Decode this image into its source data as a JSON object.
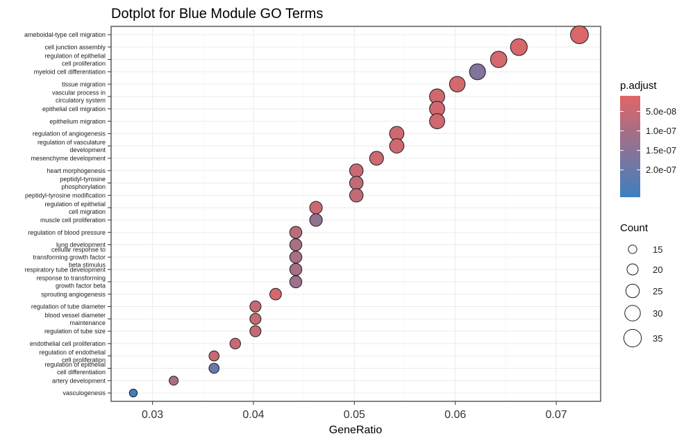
{
  "chart_data": {
    "type": "scatter",
    "title": "Dotplot for Blue Module GO Terms",
    "xlabel": "GeneRatio",
    "ylabel": "",
    "xlim": [
      0.0259,
      0.0744
    ],
    "xticks": [
      0.03,
      0.04,
      0.05,
      0.06,
      0.07
    ],
    "xtick_labels": [
      "0.03",
      "0.04",
      "0.05",
      "0.06",
      "0.07"
    ],
    "grid": true,
    "categories": [
      "ameboidal-type cell migration",
      "cell junction assembly",
      "regulation of epithelial\ncell proliferation",
      "myeloid cell differentiation",
      "tissue migration",
      "vascular process in\ncirculatory system",
      "epithelial cell migration",
      "epithelium migration",
      "regulation of angiogenesis",
      "regulation of vasculature\ndevelopment",
      "mesenchyme development",
      "heart morphogenesis",
      "peptidyl-tyrosine\nphosphorylation",
      "peptidyl-tyrosine modification",
      "regulation of epithelial\ncell migration",
      "muscle cell proliferation",
      "regulation of blood pressure",
      "lung development",
      "cellular response to\ntransforming growth factor\nbeta stimulus",
      "respiratory tube development",
      "response to transforming\ngrowth factor beta",
      "sprouting angiogenesis",
      "regulation of tube diameter",
      "blood vessel diameter\nmaintenance",
      "regulation of tube size",
      "endothelial cell proliferation",
      "regulation of endothelial\ncell proliferation",
      "regulation of epithelial\ncell differentiation",
      "artery development",
      "vasculogenesis"
    ],
    "points": [
      {
        "term": "ameboidal-type cell migration",
        "gene_ratio": 0.0723,
        "count": 36,
        "p_adjust": 2e-08
      },
      {
        "term": "cell junction assembly",
        "gene_ratio": 0.0663,
        "count": 33,
        "p_adjust": 2.5e-08
      },
      {
        "term": "regulation of epithelial cell proliferation",
        "gene_ratio": 0.0643,
        "count": 32,
        "p_adjust": 3e-08
      },
      {
        "term": "myeloid cell differentiation",
        "gene_ratio": 0.0622,
        "count": 31,
        "p_adjust": 1.6e-07
      },
      {
        "term": "tissue migration",
        "gene_ratio": 0.0602,
        "count": 30,
        "p_adjust": 3e-08
      },
      {
        "term": "vascular process in circulatory system",
        "gene_ratio": 0.0582,
        "count": 29,
        "p_adjust": 3.5e-08
      },
      {
        "term": "epithelial cell migration",
        "gene_ratio": 0.0582,
        "count": 29,
        "p_adjust": 3.5e-08
      },
      {
        "term": "epithelium migration",
        "gene_ratio": 0.0582,
        "count": 29,
        "p_adjust": 3.5e-08
      },
      {
        "term": "regulation of angiogenesis",
        "gene_ratio": 0.0542,
        "count": 27,
        "p_adjust": 4e-08
      },
      {
        "term": "regulation of vasculature development",
        "gene_ratio": 0.0542,
        "count": 27,
        "p_adjust": 4e-08
      },
      {
        "term": "mesenchyme development",
        "gene_ratio": 0.0522,
        "count": 26,
        "p_adjust": 4e-08
      },
      {
        "term": "heart morphogenesis",
        "gene_ratio": 0.0502,
        "count": 25,
        "p_adjust": 5e-08
      },
      {
        "term": "peptidyl-tyrosine phosphorylation",
        "gene_ratio": 0.0502,
        "count": 25,
        "p_adjust": 6e-08
      },
      {
        "term": "peptidyl-tyrosine modification",
        "gene_ratio": 0.0502,
        "count": 25,
        "p_adjust": 6e-08
      },
      {
        "term": "regulation of epithelial cell migration",
        "gene_ratio": 0.0462,
        "count": 23,
        "p_adjust": 4.5e-08
      },
      {
        "term": "muscle cell proliferation",
        "gene_ratio": 0.0462,
        "count": 23,
        "p_adjust": 1.35e-07
      },
      {
        "term": "regulation of blood pressure",
        "gene_ratio": 0.0442,
        "count": 22,
        "p_adjust": 7e-08
      },
      {
        "term": "lung development",
        "gene_ratio": 0.0442,
        "count": 22,
        "p_adjust": 1e-07
      },
      {
        "term": "cellular response to transforming growth factor beta stimulus",
        "gene_ratio": 0.0442,
        "count": 22,
        "p_adjust": 1e-07
      },
      {
        "term": "respiratory tube development",
        "gene_ratio": 0.0442,
        "count": 22,
        "p_adjust": 1.05e-07
      },
      {
        "term": "response to transforming growth factor beta",
        "gene_ratio": 0.0442,
        "count": 22,
        "p_adjust": 1.2e-07
      },
      {
        "term": "sprouting angiogenesis",
        "gene_ratio": 0.0422,
        "count": 21,
        "p_adjust": 3e-08
      },
      {
        "term": "regulation of tube diameter",
        "gene_ratio": 0.0402,
        "count": 20,
        "p_adjust": 6e-08
      },
      {
        "term": "blood vessel diameter maintenance",
        "gene_ratio": 0.0402,
        "count": 20,
        "p_adjust": 6e-08
      },
      {
        "term": "regulation of tube size",
        "gene_ratio": 0.0402,
        "count": 20,
        "p_adjust": 6e-08
      },
      {
        "term": "endothelial cell proliferation",
        "gene_ratio": 0.0382,
        "count": 19,
        "p_adjust": 5e-08
      },
      {
        "term": "regulation of endothelial cell proliferation",
        "gene_ratio": 0.0361,
        "count": 18,
        "p_adjust": 5.5e-08
      },
      {
        "term": "regulation of epithelial cell differentiation",
        "gene_ratio": 0.0361,
        "count": 18,
        "p_adjust": 2e-07
      },
      {
        "term": "artery development",
        "gene_ratio": 0.0321,
        "count": 16,
        "p_adjust": 9e-08
      },
      {
        "term": "vasculogenesis",
        "gene_ratio": 0.0281,
        "count": 14,
        "p_adjust": 2.7e-07
      }
    ],
    "color_legend": {
      "title": "p.adjust",
      "low_color": "#E06666",
      "high_color": "#3D7FC0",
      "range": [
        1e-08,
        2.7e-07
      ],
      "ticks": [
        5e-08,
        1e-07,
        1.5e-07,
        2e-07
      ],
      "tick_labels": [
        "5.0e-08",
        "1.0e-07",
        "1.5e-07",
        "2.0e-07"
      ]
    },
    "size_legend": {
      "title": "Count",
      "values": [
        15,
        20,
        25,
        30,
        35
      ],
      "labels": [
        "15",
        "20",
        "25",
        "30",
        "35"
      ]
    },
    "legend_placement": "right"
  }
}
